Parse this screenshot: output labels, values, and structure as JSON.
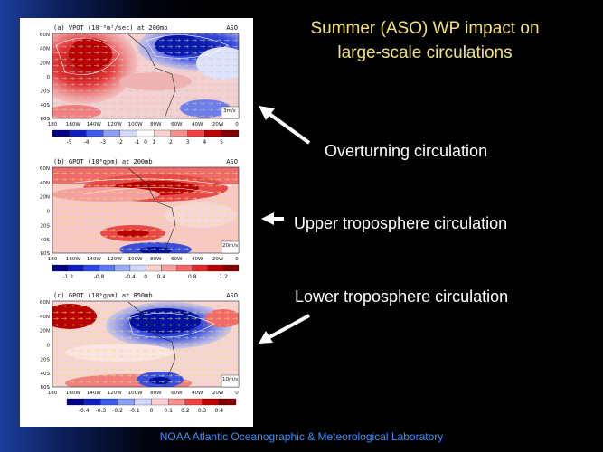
{
  "title": {
    "line1": "Summer (ASO) WP impact on",
    "line2": "large-scale circulations"
  },
  "callouts": {
    "overturning": "Overturning circulation",
    "upper": "Upper troposphere circulation",
    "lower": "Lower troposphere circulation"
  },
  "footer": "NOAA Atlantic Oceanographic & Meteorological Laboratory",
  "colors": {
    "title": "#f2e27a",
    "footer": "#3b90ff",
    "positive": "#d21e1e",
    "negative": "#1e32c8"
  },
  "figure": {
    "lat_labels": [
      "60N",
      "40N",
      "20N",
      "0",
      "20S",
      "40S",
      "60S"
    ],
    "lon_labels": [
      "180",
      "160W",
      "140W",
      "120W",
      "100W",
      "80W",
      "60W",
      "40W",
      "20W",
      "0"
    ],
    "panels": [
      {
        "title": "(a) VPOT (10⁻⁶m²/sec) at 200mb",
        "season": "ASO",
        "vector_ref": "3m/s",
        "colorbar": [
          "-5",
          "-4",
          "-3",
          "-2",
          "-1",
          "0",
          "1",
          "2",
          "3",
          "4",
          "5"
        ]
      },
      {
        "title": "(b) GPOT (10⁶gpm) at 200mb",
        "season": "ASO",
        "vector_ref": "20m/s",
        "colorbar": [
          "-1.2",
          "-0.8",
          "-0.4",
          "0",
          "0.4",
          "0.8",
          "1.2"
        ]
      },
      {
        "title": "(c) GPOT (10⁶gpm) at 850mb",
        "season": "ASO",
        "vector_ref": "10m/s",
        "colorbar": [
          "-0.4",
          "-0.3",
          "-0.2",
          "-0.1",
          "0",
          "0.1",
          "0.2",
          "0.3",
          "0.4"
        ]
      }
    ]
  }
}
